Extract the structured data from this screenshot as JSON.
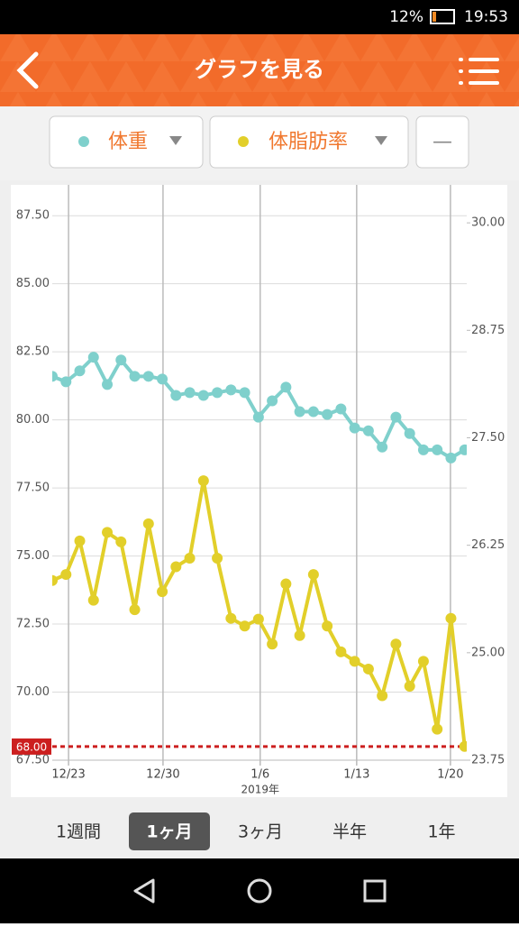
{
  "status_bar": {
    "battery": "12%",
    "time": "19:53"
  },
  "header": {
    "title": "グラフを見る"
  },
  "collapse_button": "—",
  "chart_data": {
    "type": "line",
    "x": [
      null,
      null,
      null,
      null,
      null,
      null,
      null,
      null,
      null,
      null,
      null,
      null,
      null,
      null,
      null,
      null,
      null,
      null,
      null,
      null,
      null,
      null,
      null,
      null,
      null,
      null,
      null,
      null,
      null,
      null,
      null
    ],
    "series": [
      {
        "name": "体重",
        "color": "#7fd0cc",
        "values": [
          81.6,
          81.4,
          81.8,
          82.3,
          81.3,
          82.2,
          81.6,
          81.6,
          81.5,
          80.9,
          81.0,
          80.9,
          81.0,
          81.1,
          81.0,
          80.1,
          80.7,
          81.2,
          80.3,
          80.3,
          80.2,
          80.4,
          79.7,
          79.6,
          79.0,
          80.1,
          79.5,
          78.9,
          78.9,
          78.6,
          78.9
        ]
      },
      {
        "name": "体脂肪率",
        "color": "#e2cf2a",
        "axis": "y2",
        "values": [
          25.84,
          25.91,
          26.3,
          25.61,
          26.4,
          26.29,
          25.5,
          26.5,
          25.71,
          26.0,
          26.1,
          27.0,
          26.1,
          25.4,
          25.31,
          25.39,
          25.1,
          25.8,
          25.2,
          25.91,
          25.31,
          25.01,
          24.9,
          24.81,
          24.5,
          25.1,
          24.61,
          24.9,
          24.11,
          25.4,
          23.91
        ]
      }
    ],
    "xlim": [
      0,
      30.5
    ],
    "xticks": [
      {
        "value": 1.2,
        "label": "12/23"
      },
      {
        "value": 8.15,
        "label": "12/30"
      },
      {
        "value": 15.3,
        "label": "1/6"
      },
      {
        "value": 22.4,
        "label": "1/13"
      },
      {
        "value": 29.3,
        "label": "1/20"
      }
    ],
    "year_label": {
      "value": 15.3,
      "label": "2019年"
    },
    "ylim": [
      67.5,
      88.5
    ],
    "yticks": [
      {
        "value": 67.5,
        "label": "67.50"
      },
      {
        "value": 70,
        "label": "70.00"
      },
      {
        "value": 72.5,
        "label": "72.50"
      },
      {
        "value": 75,
        "label": "75.00"
      },
      {
        "value": 77.5,
        "label": "77.50"
      },
      {
        "value": 80,
        "label": "80.00"
      },
      {
        "value": 82.5,
        "label": "82.50"
      },
      {
        "value": 85,
        "label": "85.00"
      },
      {
        "value": 87.5,
        "label": "87.50"
      }
    ],
    "y2lim": [
      23.75,
      30.4
    ],
    "y2ticks": [
      {
        "value": 23.75,
        "label": "23.75"
      },
      {
        "value": 25,
        "label": "25.00"
      },
      {
        "value": 26.25,
        "label": "26.25"
      },
      {
        "value": 27.5,
        "label": "27.50"
      },
      {
        "value": 28.75,
        "label": "28.75"
      },
      {
        "value": 30,
        "label": "30.00"
      }
    ],
    "target": {
      "value": 68,
      "label": "68.00",
      "color": "#cc1f1f"
    },
    "grid": true
  },
  "period_tabs": {
    "items": [
      "1週間",
      "1ヶ月",
      "3ヶ月",
      "半年",
      "1年"
    ],
    "selected": 1
  }
}
